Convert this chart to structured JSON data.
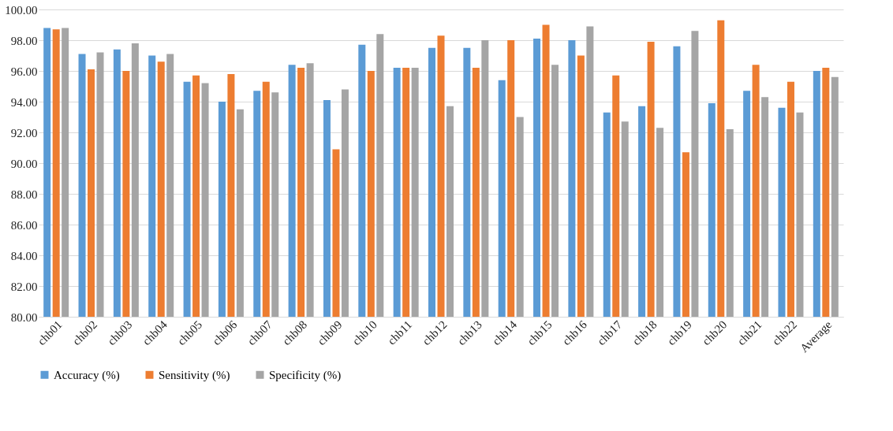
{
  "chart_data": {
    "type": "bar",
    "categories": [
      "chb01",
      "chb02",
      "chb03",
      "chb04",
      "chb05",
      "chb06",
      "chb07",
      "chb08",
      "chb09",
      "chb10",
      "chb11",
      "chb12",
      "chb13",
      "chb14",
      "chb15",
      "chb16",
      "chb17",
      "chb18",
      "chb19",
      "chb20",
      "chb21",
      "chb22",
      "Average"
    ],
    "series": [
      {
        "name": "Accuracy (%)",
        "color": "#5b9bd5",
        "values": [
          98.8,
          97.1,
          97.4,
          97.0,
          95.3,
          94.0,
          94.7,
          96.4,
          94.1,
          97.7,
          96.2,
          97.5,
          97.5,
          95.4,
          98.1,
          98.0,
          93.3,
          93.7,
          97.6,
          93.9,
          94.7,
          93.6,
          96.0
        ]
      },
      {
        "name": "Sensitivity (%)",
        "color": "#ed7d31",
        "values": [
          98.7,
          96.1,
          96.0,
          96.6,
          95.7,
          95.8,
          95.3,
          96.2,
          90.9,
          96.0,
          96.2,
          98.3,
          96.2,
          98.0,
          99.0,
          97.0,
          95.7,
          97.9,
          90.7,
          99.3,
          96.4,
          95.3,
          96.2
        ]
      },
      {
        "name": "Specificity (%)",
        "color": "#a5a5a5",
        "values": [
          98.8,
          97.2,
          97.8,
          97.1,
          95.2,
          93.5,
          94.6,
          96.5,
          94.8,
          98.4,
          96.2,
          93.7,
          98.0,
          93.0,
          96.4,
          98.9,
          92.7,
          92.3,
          98.6,
          92.2,
          94.3,
          93.3,
          95.6
        ]
      }
    ],
    "ylim": [
      80,
      100
    ],
    "yticks": [
      {
        "value": 80,
        "label": "80.00"
      },
      {
        "value": 82,
        "label": "82.00"
      },
      {
        "value": 84,
        "label": "84.00"
      },
      {
        "value": 86,
        "label": "86.00"
      },
      {
        "value": 88,
        "label": "88.00"
      },
      {
        "value": 90,
        "label": "90.00"
      },
      {
        "value": 92,
        "label": "92.00"
      },
      {
        "value": 94,
        "label": "94.00"
      },
      {
        "value": 96,
        "label": "96.00"
      },
      {
        "value": 98,
        "label": "98.00"
      },
      {
        "value": 100,
        "label": "100.00"
      }
    ],
    "grid": "y",
    "legend": "bottom"
  }
}
